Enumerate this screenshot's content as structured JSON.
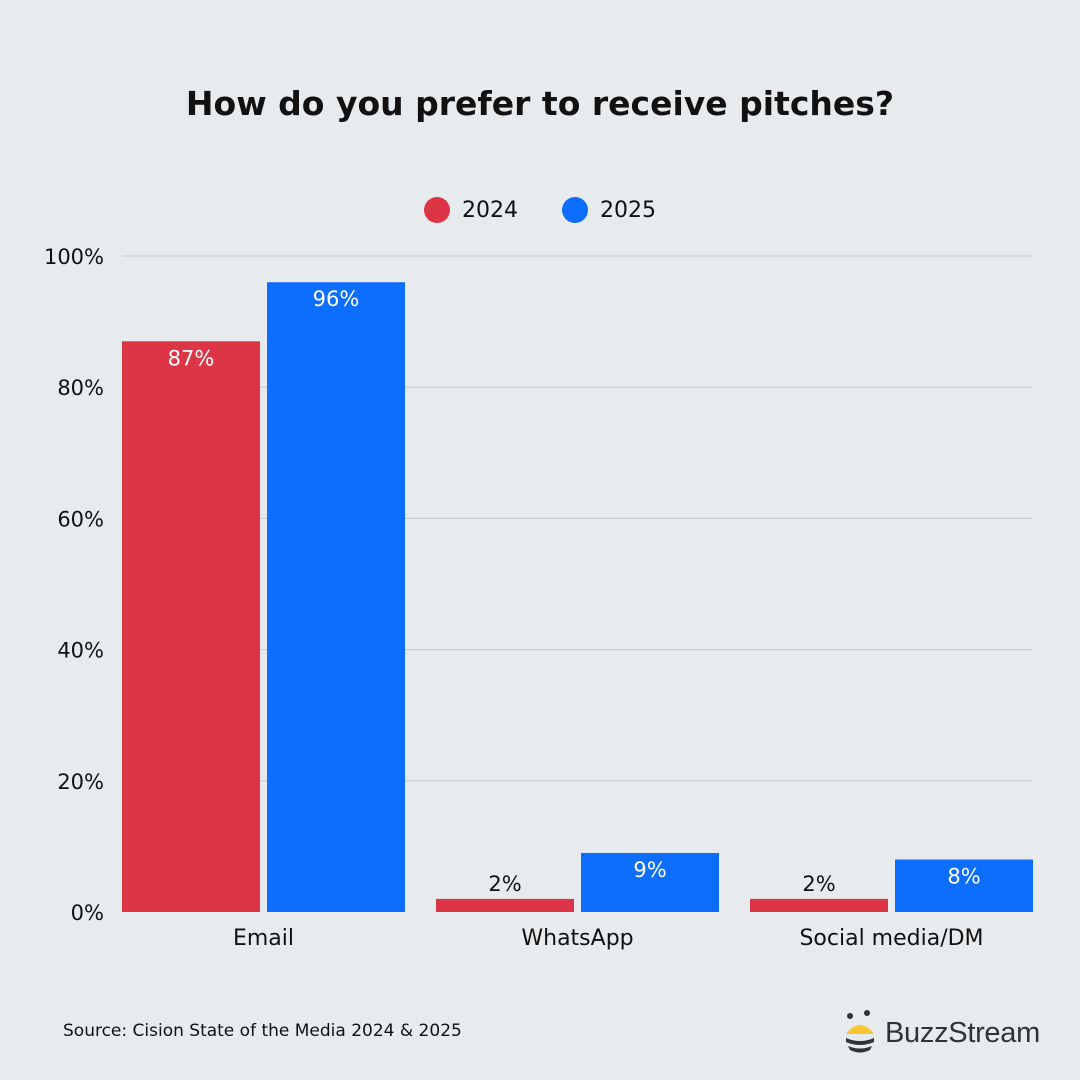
{
  "chart_data": {
    "type": "bar",
    "title": "How do you prefer to receive pitches?",
    "categories": [
      "Email",
      "WhatsApp",
      "Social media/DM"
    ],
    "series": [
      {
        "name": "2024",
        "values": [
          87,
          2,
          2
        ],
        "labels": [
          "87%",
          "2%",
          "2%"
        ],
        "color": "#dc3545"
      },
      {
        "name": "2025",
        "values": [
          96,
          9,
          8
        ],
        "labels": [
          "96%",
          "9%",
          "8%"
        ],
        "color": "#0d6efd"
      }
    ],
    "yticks": [
      "0%",
      "20%",
      "40%",
      "60%",
      "80%",
      "100%"
    ],
    "ytick_values": [
      0,
      20,
      40,
      60,
      80,
      100
    ],
    "ylim": [
      0,
      100
    ],
    "grid": true,
    "legend": "top-center",
    "xlabel": "",
    "ylabel": ""
  },
  "source": "Source: Cision State of the Media 2024 & 2025",
  "brand": {
    "name": "BuzzStream",
    "accent": "#f7c531",
    "dark": "#2f3338"
  },
  "colors": {
    "background": "#e8ebee",
    "grid": "#c3c7cc"
  }
}
